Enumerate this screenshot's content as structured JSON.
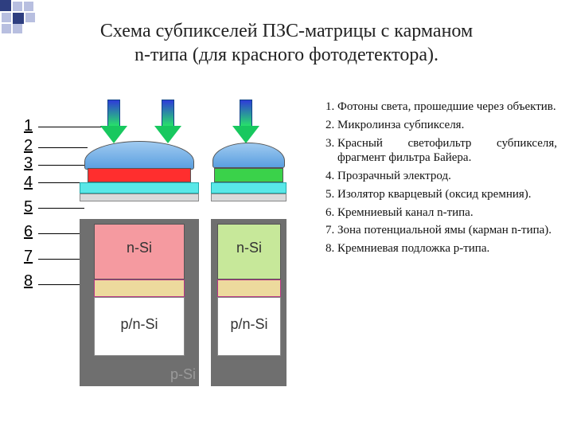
{
  "motif": {
    "big": "#2e3e80",
    "small": "#b8bfe0",
    "bg": "#ffffff"
  },
  "title": {
    "line1": "Схема субпикселей ПЗС-матрицы с карманом",
    "line2": "n-типа (для красного фотодетектора).",
    "fontsize": 24
  },
  "legend_bullets_color": "#1f2b5f",
  "legend_items": [
    "Фотоны света, прошедшие через объектив.",
    "Микролинза субпикселя.",
    "Красный светофильтр субпикселя, фрагмент фильтра Байера.",
    "Прозрачный электрод.",
    "Изолятор кварцевый (оксид кремния).",
    "Кремниевый канал n-типа.",
    "Зона потенциальной ямы (карман n-типа).",
    "Кремниевая подложка p-типа."
  ],
  "numbers": [
    "1",
    "2",
    "3",
    "4",
    "5",
    "6",
    "7",
    "8"
  ],
  "diagram": {
    "lens": {
      "color": "#6fb2e8",
      "border": "#4a7"
    },
    "filter_A": {
      "color": "#ff2e2e"
    },
    "filter_B": {
      "color": "#3ad24a"
    },
    "electrode": {
      "color": "#59e8e8"
    },
    "oxide": {
      "color": "#d9dadb"
    },
    "well_A": {
      "color": "#f59aa0",
      "label": "n-Si"
    },
    "well_B": {
      "color": "#c7e89a",
      "label": "n-Si"
    },
    "channel": {
      "color": "#f4e0a0"
    },
    "pwell": {
      "label": "p/n-Si"
    },
    "substrate": {
      "color": "#6f6f6f",
      "label": "p-Si"
    },
    "arrow_colors": {
      "top": "#2e3bd8",
      "bottom": "#18c85f"
    }
  }
}
